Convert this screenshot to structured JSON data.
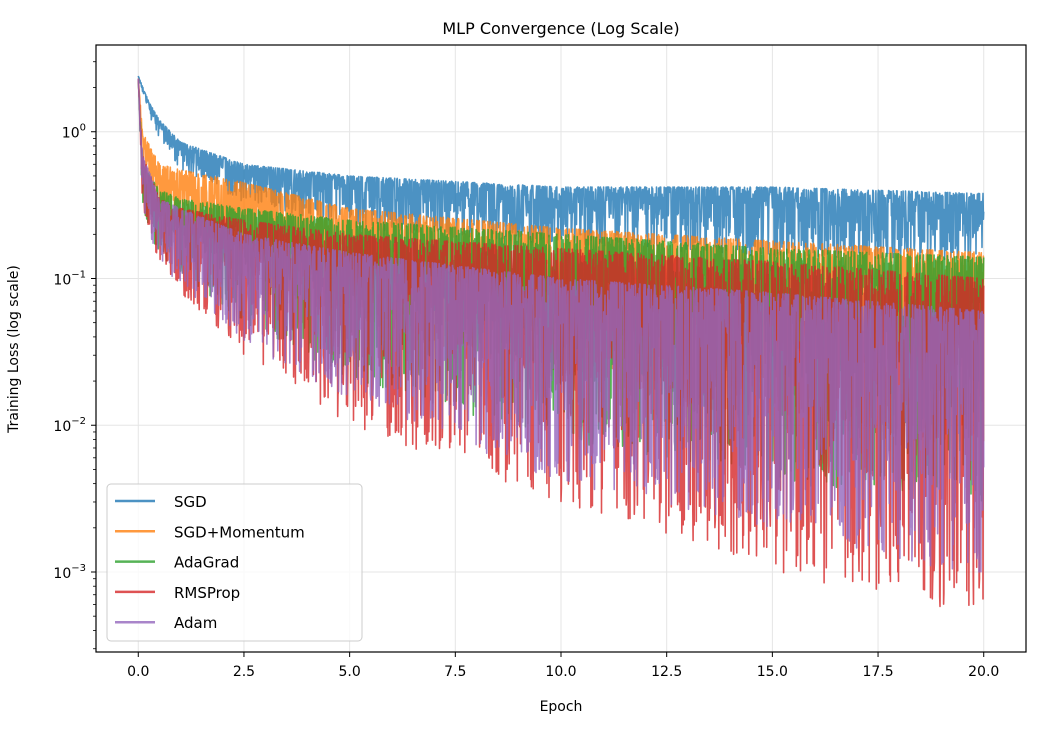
{
  "chart_data": {
    "type": "line",
    "title": "MLP Convergence (Log Scale)",
    "xlabel": "Epoch",
    "ylabel": "Training Loss (log scale)",
    "xlim": [
      -1.0,
      21.0
    ],
    "ylim": [
      0.000285,
      3.9
    ],
    "yscale": "log",
    "grid": true,
    "legend_position": "lower-left",
    "x_ticks": [
      "0.0",
      "2.5",
      "5.0",
      "7.5",
      "10.0",
      "12.5",
      "15.0",
      "17.5",
      "20.0"
    ],
    "y_ticks": [
      {
        "value": 1,
        "base": "10",
        "exp": "0"
      },
      {
        "value": 0.1,
        "base": "10",
        "exp": "−1"
      },
      {
        "value": 0.01,
        "base": "10",
        "exp": "−2"
      },
      {
        "value": 0.001,
        "base": "10",
        "exp": "−3"
      }
    ],
    "series_note_format": "envelope points: [epoch, lower loss, upper loss]",
    "series": [
      {
        "name": "SGD",
        "color": "#1f77b4",
        "envelope": [
          [
            0,
            2.4,
            2.4
          ],
          [
            0.25,
            1.3,
            1.6
          ],
          [
            0.5,
            0.9,
            1.2
          ],
          [
            1,
            0.55,
            0.85
          ],
          [
            2.5,
            0.33,
            0.6
          ],
          [
            5,
            0.22,
            0.5
          ],
          [
            10,
            0.17,
            0.42
          ],
          [
            15,
            0.14,
            0.42
          ],
          [
            20,
            0.13,
            0.38
          ]
        ]
      },
      {
        "name": "SGD+Momentum",
        "color": "#ff7f0e",
        "envelope": [
          [
            0,
            2.3,
            2.3
          ],
          [
            0.1,
            0.6,
            1.0
          ],
          [
            0.5,
            0.25,
            0.6
          ],
          [
            1,
            0.18,
            0.55
          ],
          [
            2.5,
            0.1,
            0.45
          ],
          [
            5,
            0.05,
            0.3
          ],
          [
            10,
            0.02,
            0.22
          ],
          [
            15,
            0.01,
            0.18
          ],
          [
            20,
            0.006,
            0.15
          ]
        ]
      },
      {
        "name": "AdaGrad",
        "color": "#2ca02c",
        "envelope": [
          [
            0,
            2.3,
            2.3
          ],
          [
            0.1,
            0.3,
            0.6
          ],
          [
            0.5,
            0.14,
            0.4
          ],
          [
            1,
            0.11,
            0.35
          ],
          [
            2.5,
            0.05,
            0.3
          ],
          [
            5,
            0.02,
            0.25
          ],
          [
            10,
            0.008,
            0.2
          ],
          [
            15,
            0.004,
            0.16
          ],
          [
            20,
            0.003,
            0.14
          ]
        ]
      },
      {
        "name": "RMSProp",
        "color": "#d62728",
        "envelope": [
          [
            0,
            2.3,
            2.3
          ],
          [
            0.1,
            0.3,
            0.7
          ],
          [
            0.5,
            0.12,
            0.35
          ],
          [
            1,
            0.08,
            0.3
          ],
          [
            2.5,
            0.03,
            0.25
          ],
          [
            5,
            0.01,
            0.2
          ],
          [
            10,
            0.003,
            0.16
          ],
          [
            15,
            0.001,
            0.13
          ],
          [
            20,
            0.0005,
            0.1
          ]
        ]
      },
      {
        "name": "Adam",
        "color": "#9467bd",
        "envelope": [
          [
            0,
            2.3,
            2.3
          ],
          [
            0.1,
            0.3,
            0.7
          ],
          [
            0.5,
            0.12,
            0.35
          ],
          [
            1,
            0.09,
            0.3
          ],
          [
            2.5,
            0.035,
            0.2
          ],
          [
            5,
            0.015,
            0.15
          ],
          [
            10,
            0.004,
            0.1
          ],
          [
            15,
            0.002,
            0.08
          ],
          [
            20,
            0.0009,
            0.06
          ]
        ]
      }
    ]
  }
}
